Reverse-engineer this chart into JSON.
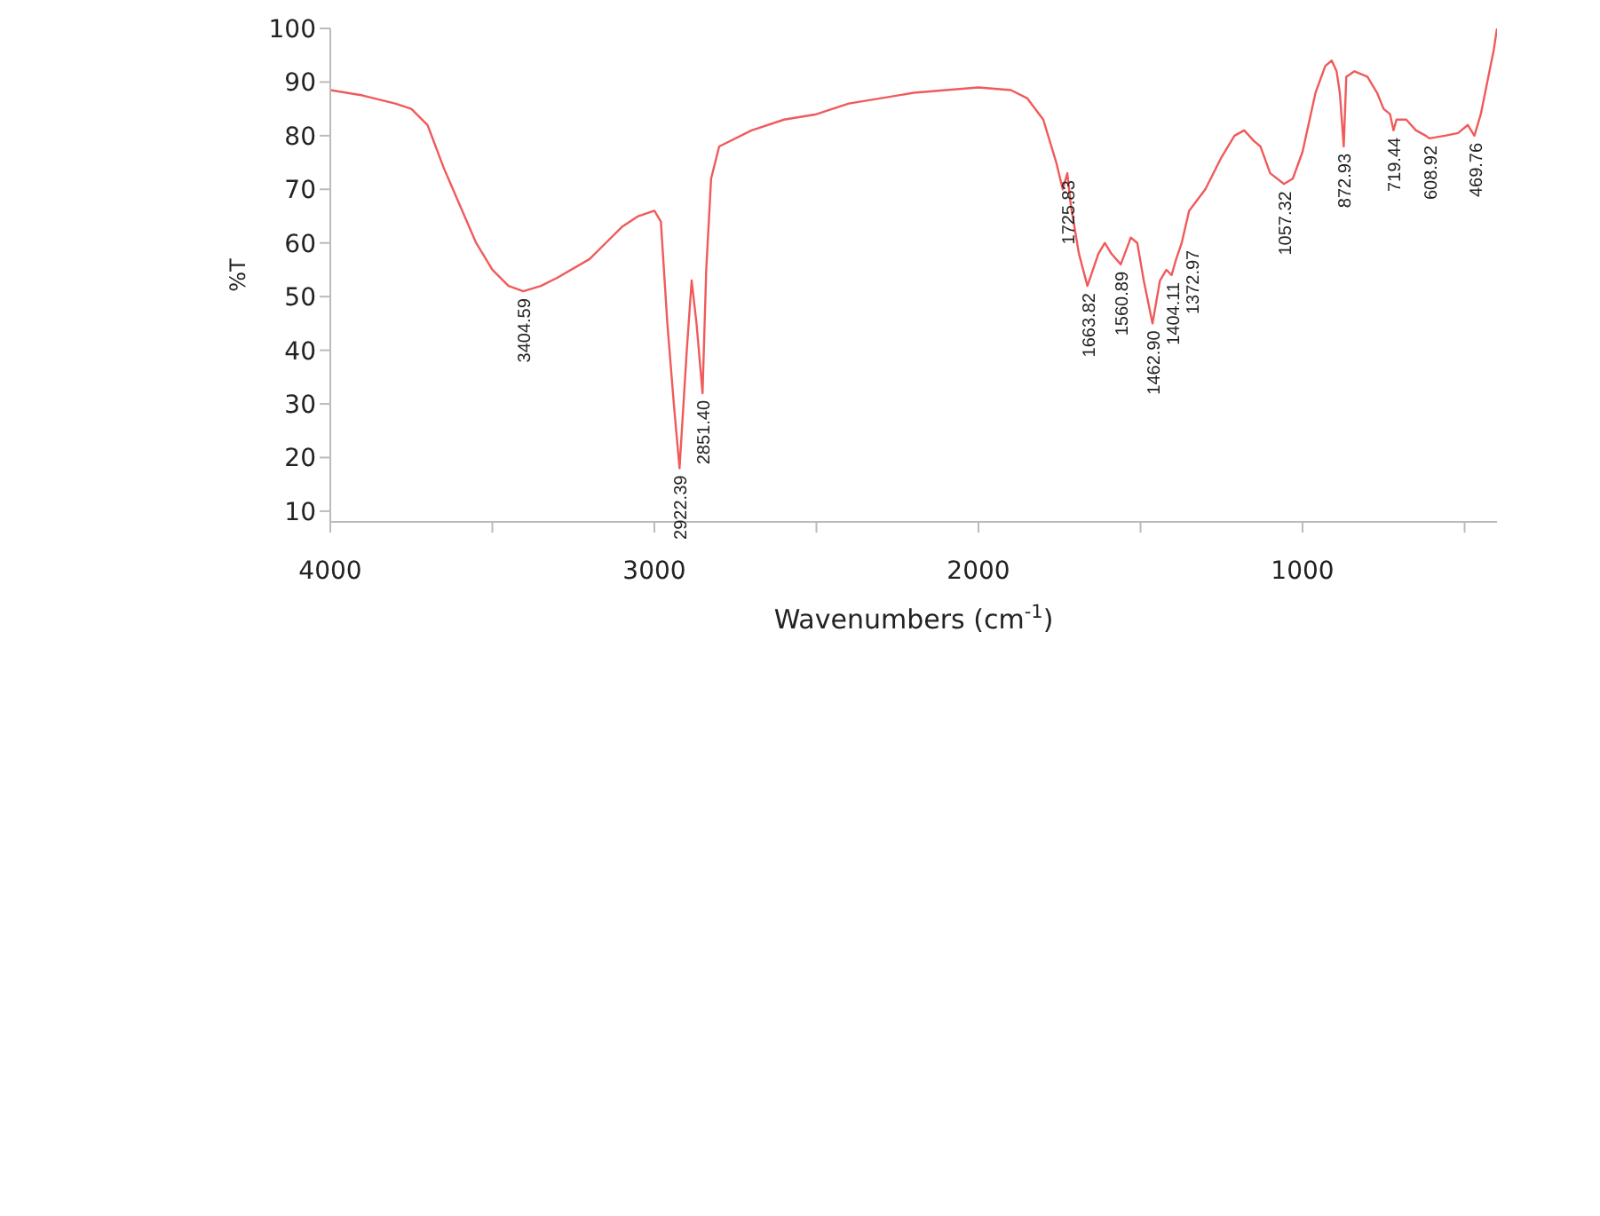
{
  "chart_data": {
    "type": "line",
    "xlabel": "Wavenumbers (cm$^{-1}$)",
    "ylabel": "%T",
    "xlim": [
      4000,
      400
    ],
    "ylim": [
      8,
      100
    ],
    "xticks": [
      4000,
      {
        "value": 3500,
        "label": null
      },
      3000,
      {
        "value": 2500,
        "label": null
      },
      2000,
      {
        "value": 1500,
        "label": null
      },
      1000,
      {
        "value": 500,
        "label": null
      }
    ],
    "yticks": [
      10,
      20,
      30,
      40,
      50,
      60,
      70,
      80,
      90,
      100
    ],
    "marker": "none",
    "line_style": "solid",
    "x": [
      4000,
      3900,
      3800,
      3750,
      3700,
      3650,
      3600,
      3550,
      3500,
      3450,
      3404.59,
      3350,
      3300,
      3200,
      3150,
      3100,
      3050,
      3000,
      2980,
      2960,
      2940,
      2922.39,
      2900,
      2885,
      2870,
      2851.4,
      2840,
      2825,
      2800,
      2700,
      2600,
      2500,
      2400,
      2300,
      2200,
      2100,
      2000,
      1900,
      1850,
      1800,
      1760,
      1740,
      1725.83,
      1715,
      1690,
      1663.82,
      1630,
      1610,
      1590,
      1560.89,
      1530,
      1510,
      1490,
      1462.9,
      1440,
      1420,
      1404.11,
      1390,
      1372.97,
      1350,
      1300,
      1250,
      1210,
      1180,
      1150,
      1130,
      1100,
      1057.32,
      1030,
      1000,
      960,
      930,
      910,
      895,
      885,
      872.93,
      865,
      840,
      800,
      770,
      750,
      730,
      719.44,
      710,
      680,
      650,
      620,
      608.92,
      560,
      520,
      490,
      480,
      469.76,
      450,
      430,
      410,
      400
    ],
    "series": [
      {
        "color": "#f05a5a",
        "values": [
          88.5,
          87.5,
          86,
          85,
          82,
          74,
          67,
          60,
          55,
          52,
          51,
          52,
          53.5,
          57,
          60,
          63,
          65,
          66,
          64,
          45,
          30,
          18,
          40,
          53,
          45,
          32,
          55,
          72,
          78,
          81,
          83,
          84,
          86,
          87,
          88,
          88.5,
          89,
          88.5,
          87,
          83,
          75,
          70,
          73,
          67,
          58,
          52,
          58,
          60,
          58,
          56,
          61,
          60,
          53,
          45,
          53,
          55,
          54,
          57,
          60,
          66,
          70,
          76,
          80,
          81,
          79,
          78,
          73,
          71,
          72,
          77,
          88,
          93,
          94,
          92,
          88,
          78,
          91,
          92,
          91,
          88,
          85,
          84,
          81,
          83,
          83,
          81,
          80,
          79.5,
          80,
          80.5,
          82,
          81,
          80,
          84,
          90,
          96,
          100
        ]
      }
    ],
    "annotations": [
      {
        "text": "3404.59",
        "x": 3404.59,
        "y": 51
      },
      {
        "text": "2922.39",
        "x": 2922.39,
        "y": 18
      },
      {
        "text": "2851.40",
        "x": 2851.4,
        "y": 32
      },
      {
        "text": "1725.83",
        "x": 1725.83,
        "y": 73
      },
      {
        "text": "1663.82",
        "x": 1663.82,
        "y": 52
      },
      {
        "text": "1560.89",
        "x": 1560.89,
        "y": 56
      },
      {
        "text": "1462.90",
        "x": 1462.9,
        "y": 45
      },
      {
        "text": "1404.11",
        "x": 1404.11,
        "y": 54
      },
      {
        "text": "1372.97",
        "x": 1372.97,
        "y": 60
      },
      {
        "text": "1057.32",
        "x": 1057.32,
        "y": 71
      },
      {
        "text": "872.93",
        "x": 872.93,
        "y": 78
      },
      {
        "text": "719.44",
        "x": 719.44,
        "y": 81
      },
      {
        "text": "608.92",
        "x": 608.92,
        "y": 79.5
      },
      {
        "text": "469.76",
        "x": 469.76,
        "y": 80
      }
    ]
  }
}
